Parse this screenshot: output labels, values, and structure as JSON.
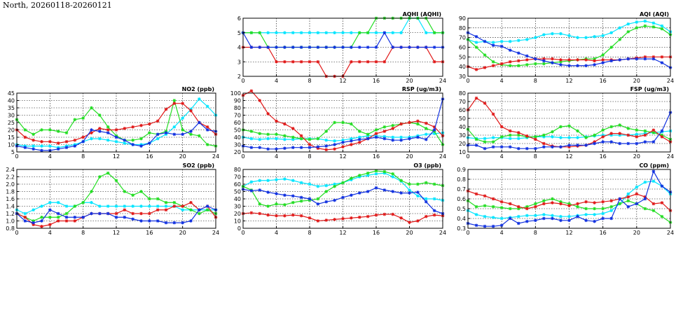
{
  "title": "North, 20260118-20260121",
  "colors": {
    "cyan": "#00e5ff",
    "green": "#22dd22",
    "red": "#e01818",
    "blue": "#1030e0"
  },
  "chart_data": [
    {
      "id": "aqhi",
      "type": "line",
      "title": "AQHI (AQHI)",
      "ylim": [
        2,
        6
      ],
      "yticks": [
        2,
        3,
        4,
        5,
        6
      ],
      "xlim": [
        0,
        24
      ],
      "xticks": [
        0,
        4,
        8,
        12,
        16,
        20,
        24
      ],
      "series": [
        {
          "color": "cyan",
          "values": [
            5,
            5,
            5,
            5,
            5,
            5,
            5,
            5,
            5,
            5,
            5,
            5,
            5,
            5,
            5,
            5,
            5,
            5,
            5,
            5,
            6,
            6,
            5,
            5,
            5
          ]
        },
        {
          "color": "green",
          "values": [
            5,
            5,
            5,
            4,
            4,
            4,
            4,
            4,
            4,
            4,
            4,
            4,
            4,
            4,
            5,
            5,
            6,
            6,
            6,
            6,
            6,
            6,
            6,
            5,
            5
          ]
        },
        {
          "color": "red",
          "values": [
            4,
            4,
            4,
            4,
            3,
            3,
            3,
            3,
            3,
            3,
            2,
            2,
            2,
            3,
            3,
            3,
            3,
            3,
            4,
            4,
            4,
            4,
            4,
            3,
            3
          ]
        },
        {
          "color": "blue",
          "values": [
            5,
            4,
            4,
            4,
            4,
            4,
            4,
            4,
            4,
            4,
            4,
            4,
            4,
            4,
            4,
            4,
            4,
            5,
            4,
            4,
            4,
            4,
            4,
            4,
            4
          ]
        }
      ]
    },
    {
      "id": "aqi",
      "type": "line",
      "title": "AQI (AQI)",
      "ylim": [
        30,
        90
      ],
      "yticks": [
        30,
        40,
        50,
        60,
        70,
        80,
        90
      ],
      "xlim": [
        0,
        24
      ],
      "xticks": [
        0,
        4,
        8,
        12,
        16,
        20,
        24
      ],
      "series": [
        {
          "color": "cyan",
          "values": [
            68,
            65,
            66,
            65,
            66,
            66,
            67,
            68,
            70,
            73,
            74,
            74,
            72,
            70,
            70,
            71,
            72,
            75,
            80,
            84,
            86,
            87,
            85,
            82,
            76
          ]
        },
        {
          "color": "green",
          "values": [
            68,
            60,
            52,
            45,
            42,
            41,
            41,
            42,
            43,
            43,
            44,
            45,
            46,
            47,
            48,
            48,
            52,
            60,
            68,
            76,
            80,
            82,
            81,
            79,
            73
          ]
        },
        {
          "color": "red",
          "values": [
            40,
            37,
            39,
            41,
            43,
            45,
            46,
            47,
            48,
            48,
            48,
            47,
            47,
            47,
            47,
            46,
            47,
            47,
            47,
            48,
            49,
            50,
            50,
            50,
            50
          ]
        },
        {
          "color": "blue",
          "values": [
            75,
            71,
            66,
            62,
            61,
            57,
            54,
            51,
            48,
            46,
            44,
            42,
            41,
            41,
            41,
            42,
            44,
            46,
            47,
            48,
            48,
            48,
            48,
            44,
            39
          ]
        }
      ]
    },
    {
      "id": "no2",
      "type": "line",
      "title": "NO2 (ppb)",
      "ylim": [
        5,
        45
      ],
      "yticks": [
        5,
        10,
        15,
        20,
        25,
        30,
        35,
        40,
        45
      ],
      "xlim": [
        0,
        24
      ],
      "xticks": [
        0,
        4,
        8,
        12,
        16,
        20,
        24
      ],
      "series": [
        {
          "color": "cyan",
          "values": [
            10,
            9,
            9,
            9,
            9,
            8,
            9,
            10,
            12,
            14,
            14,
            13,
            12,
            11,
            10,
            10,
            11,
            14,
            17,
            22,
            28,
            34,
            41,
            36,
            30
          ]
        },
        {
          "color": "green",
          "values": [
            27,
            20,
            17,
            20,
            20,
            19,
            18,
            27,
            28,
            35,
            30,
            22,
            16,
            13,
            13,
            14,
            18,
            17,
            19,
            40,
            20,
            17,
            16,
            10,
            9
          ]
        },
        {
          "color": "red",
          "values": [
            20,
            15,
            13,
            12,
            12,
            11,
            12,
            13,
            15,
            18,
            21,
            20,
            20,
            21,
            22,
            23,
            24,
            26,
            34,
            38,
            38,
            33,
            25,
            22,
            17
          ]
        },
        {
          "color": "blue",
          "values": [
            9,
            8,
            7,
            6,
            6,
            7,
            8,
            9,
            12,
            20,
            19,
            18,
            15,
            13,
            10,
            9,
            11,
            17,
            18,
            17,
            17,
            19,
            25,
            20,
            19
          ]
        }
      ]
    },
    {
      "id": "rsp",
      "type": "line",
      "title": "RSP (ug/m3)",
      "ylim": [
        20,
        100
      ],
      "yticks": [
        20,
        30,
        40,
        50,
        60,
        70,
        80,
        90,
        100
      ],
      "xlim": [
        0,
        24
      ],
      "xticks": [
        0,
        4,
        8,
        12,
        16,
        20,
        24
      ],
      "series": [
        {
          "color": "cyan",
          "values": [
            40,
            38,
            37,
            38,
            38,
            37,
            37,
            38,
            38,
            38,
            36,
            35,
            36,
            38,
            40,
            42,
            42,
            41,
            40,
            40,
            40,
            42,
            44,
            45,
            46
          ]
        },
        {
          "color": "green",
          "values": [
            50,
            48,
            45,
            44,
            44,
            42,
            40,
            38,
            37,
            38,
            48,
            60,
            60,
            58,
            48,
            44,
            50,
            54,
            56,
            58,
            60,
            58,
            52,
            48,
            30
          ]
        },
        {
          "color": "red",
          "values": [
            97,
            103,
            90,
            72,
            62,
            58,
            52,
            42,
            30,
            25,
            23,
            24,
            27,
            30,
            33,
            38,
            45,
            48,
            52,
            58,
            60,
            62,
            59,
            54,
            42
          ]
        },
        {
          "color": "blue",
          "values": [
            28,
            26,
            26,
            24,
            24,
            25,
            26,
            26,
            26,
            27,
            28,
            30,
            33,
            35,
            37,
            38,
            40,
            38,
            36,
            36,
            38,
            40,
            37,
            50,
            92
          ]
        }
      ]
    },
    {
      "id": "fsp",
      "type": "line",
      "title": "FSP (ug/m3)",
      "ylim": [
        10,
        80
      ],
      "yticks": [
        10,
        20,
        30,
        40,
        50,
        60,
        70,
        80
      ],
      "xlim": [
        0,
        24
      ],
      "xticks": [
        0,
        4,
        8,
        12,
        16,
        20,
        24
      ],
      "series": [
        {
          "color": "cyan",
          "values": [
            27,
            26,
            26,
            27,
            27,
            26,
            26,
            27,
            28,
            28,
            28,
            27,
            27,
            27,
            28,
            29,
            30,
            30,
            30,
            30,
            31,
            32,
            33,
            34,
            35
          ]
        },
        {
          "color": "green",
          "values": [
            37,
            25,
            22,
            22,
            28,
            30,
            30,
            28,
            28,
            30,
            34,
            40,
            41,
            35,
            27,
            30,
            36,
            40,
            42,
            38,
            36,
            35,
            33,
            30,
            25
          ]
        },
        {
          "color": "red",
          "values": [
            60,
            74,
            68,
            55,
            40,
            35,
            33,
            29,
            25,
            20,
            17,
            16,
            16,
            17,
            18,
            22,
            28,
            32,
            32,
            30,
            28,
            30,
            36,
            28,
            22
          ]
        },
        {
          "color": "blue",
          "values": [
            18,
            18,
            14,
            16,
            16,
            16,
            14,
            14,
            14,
            16,
            16,
            16,
            18,
            18,
            18,
            20,
            22,
            22,
            20,
            20,
            20,
            22,
            22,
            35,
            57
          ]
        }
      ]
    },
    {
      "id": "so2",
      "type": "line",
      "title": "SO2 (ppb)",
      "ylim": [
        0.8,
        2.4
      ],
      "yticks": [
        0.8,
        1.0,
        1.2,
        1.4,
        1.6,
        1.8,
        2.0,
        2.2,
        2.4
      ],
      "xlim": [
        0,
        24
      ],
      "xticks": [
        0,
        4,
        8,
        12,
        16,
        20,
        24
      ],
      "series": [
        {
          "color": "cyan",
          "values": [
            1.3,
            1.2,
            1.3,
            1.4,
            1.5,
            1.5,
            1.4,
            1.4,
            1.5,
            1.5,
            1.4,
            1.4,
            1.4,
            1.4,
            1.4,
            1.4,
            1.4,
            1.4,
            1.4,
            1.4,
            1.3,
            1.3,
            1.3,
            1.3,
            1.3
          ]
        },
        {
          "color": "green",
          "values": [
            1.2,
            1.1,
            1.0,
            1.1,
            1.1,
            1.1,
            1.2,
            1.4,
            1.5,
            1.8,
            2.2,
            2.3,
            2.1,
            1.8,
            1.7,
            1.8,
            1.6,
            1.6,
            1.5,
            1.5,
            1.4,
            1.3,
            1.2,
            1.3,
            1.2
          ]
        },
        {
          "color": "red",
          "values": [
            1.2,
            1.1,
            0.9,
            0.85,
            0.9,
            1.0,
            1.0,
            1.0,
            1.1,
            1.2,
            1.2,
            1.2,
            1.2,
            1.3,
            1.2,
            1.2,
            1.2,
            1.3,
            1.3,
            1.4,
            1.4,
            1.5,
            1.3,
            1.4,
            1.1
          ]
        },
        {
          "color": "blue",
          "values": [
            1.2,
            1.0,
            0.95,
            1.0,
            1.3,
            1.2,
            1.1,
            1.1,
            1.1,
            1.2,
            1.2,
            1.2,
            1.1,
            1.1,
            1.05,
            1.0,
            1.0,
            1.0,
            0.95,
            0.95,
            0.95,
            1.0,
            1.3,
            1.4,
            1.3
          ]
        }
      ]
    },
    {
      "id": "o3",
      "type": "line",
      "title": "O3 (ppb)",
      "ylim": [
        0,
        80
      ],
      "yticks": [
        0,
        10,
        20,
        30,
        40,
        50,
        60,
        70,
        80
      ],
      "xlim": [
        0,
        24
      ],
      "xticks": [
        0,
        4,
        8,
        12,
        16,
        20,
        24
      ],
      "series": [
        {
          "color": "cyan",
          "values": [
            57,
            63,
            65,
            65,
            66,
            67,
            65,
            62,
            60,
            57,
            58,
            60,
            62,
            66,
            70,
            72,
            74,
            75,
            70,
            64,
            52,
            44,
            40,
            40,
            38
          ]
        },
        {
          "color": "green",
          "values": [
            57,
            52,
            33,
            30,
            33,
            32,
            35,
            37,
            38,
            40,
            50,
            57,
            62,
            68,
            72,
            75,
            78,
            77,
            74,
            65,
            60,
            60,
            62,
            60,
            58
          ]
        },
        {
          "color": "red",
          "values": [
            20,
            21,
            20,
            18,
            17,
            17,
            18,
            17,
            14,
            10,
            11,
            12,
            13,
            14,
            15,
            16,
            18,
            19,
            19,
            14,
            8,
            10,
            16,
            18,
            17
          ]
        },
        {
          "color": "blue",
          "values": [
            53,
            51,
            52,
            49,
            47,
            45,
            44,
            42,
            40,
            33,
            36,
            38,
            42,
            45,
            48,
            50,
            55,
            52,
            50,
            48,
            48,
            49,
            36,
            24,
            20
          ]
        }
      ]
    },
    {
      "id": "co",
      "type": "line",
      "title": "CO (ppm)",
      "ylim": [
        0.3,
        0.9
      ],
      "yticks": [
        0.3,
        0.4,
        0.5,
        0.6,
        0.7,
        0.8,
        0.9
      ],
      "xlim": [
        0,
        24
      ],
      "xticks": [
        0,
        4,
        8,
        12,
        16,
        20,
        24
      ],
      "series": [
        {
          "color": "cyan",
          "values": [
            0.48,
            0.44,
            0.42,
            0.41,
            0.4,
            0.41,
            0.42,
            0.43,
            0.43,
            0.44,
            0.43,
            0.42,
            0.42,
            0.43,
            0.44,
            0.44,
            0.45,
            0.48,
            0.55,
            0.65,
            0.72,
            0.77,
            0.78,
            0.73,
            0.65
          ]
        },
        {
          "color": "green",
          "values": [
            0.58,
            0.52,
            0.53,
            0.52,
            0.51,
            0.5,
            0.5,
            0.52,
            0.55,
            0.58,
            0.6,
            0.57,
            0.55,
            0.52,
            0.5,
            0.5,
            0.5,
            0.52,
            0.55,
            0.58,
            0.55,
            0.5,
            0.48,
            0.42,
            0.36
          ]
        },
        {
          "color": "red",
          "values": [
            0.68,
            0.65,
            0.63,
            0.6,
            0.57,
            0.55,
            0.52,
            0.5,
            0.52,
            0.55,
            0.56,
            0.55,
            0.53,
            0.55,
            0.57,
            0.56,
            0.57,
            0.58,
            0.6,
            0.62,
            0.65,
            0.62,
            0.55,
            0.56,
            0.48
          ]
        },
        {
          "color": "blue",
          "values": [
            0.35,
            0.33,
            0.32,
            0.32,
            0.33,
            0.4,
            0.35,
            0.37,
            0.38,
            0.4,
            0.4,
            0.38,
            0.38,
            0.42,
            0.38,
            0.37,
            0.4,
            0.4,
            0.6,
            0.52,
            0.55,
            0.6,
            0.88,
            0.73,
            0.67
          ]
        }
      ]
    }
  ]
}
